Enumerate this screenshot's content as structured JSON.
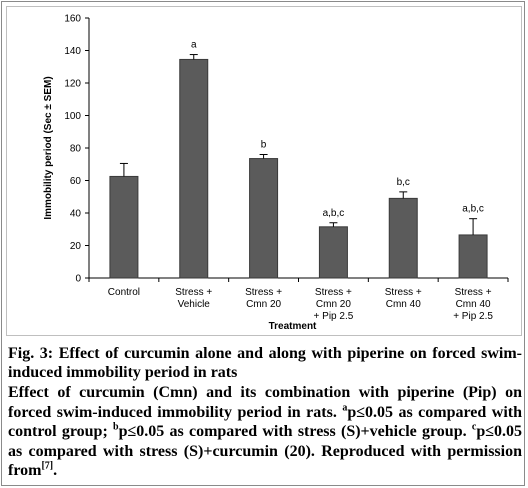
{
  "chart_data": {
    "type": "bar",
    "categories": [
      [
        "Control"
      ],
      [
        "Stress +",
        "Vehicle"
      ],
      [
        "Stress +",
        "Cmn 20"
      ],
      [
        "Stress +",
        "Cmn 20",
        "+ Pip 2.5"
      ],
      [
        "Stress +",
        "Cmn 40"
      ],
      [
        "Stress +",
        "Cmn 40",
        "+ Pip 2.5"
      ]
    ],
    "values": [
      62.5,
      134.5,
      73.5,
      31.5,
      49.0,
      26.5
    ],
    "errors": [
      8.0,
      3.0,
      2.5,
      2.5,
      4.0,
      10.0
    ],
    "significance": [
      "",
      "a",
      "b",
      "a,b,c",
      "b,c",
      "a,b,c"
    ],
    "ylabel": "Immobility period (Sec ± SEM)",
    "xlabel": "Treatment",
    "ylim": [
      0,
      160
    ],
    "yticks": [
      0,
      20,
      40,
      60,
      80,
      100,
      120,
      140,
      160
    ],
    "bar_color": "#5b5b5b",
    "grid": false
  },
  "caption": {
    "title": "Fig. 3: Effect of curcumin alone and along with piperine on forced swim-induced immobility period in rats",
    "desc_parts": [
      {
        "text": "Effect of curcumin (Cmn) and its combination with piperine (Pip) on forced swim-induced immobility period in rats. "
      },
      {
        "sup": "a"
      },
      {
        "text": "p≤0.05 as compared with control group; "
      },
      {
        "sup": "b"
      },
      {
        "text": "p≤0.05 as compared with stress (S)+vehicle group. "
      },
      {
        "sup": "c"
      },
      {
        "text": "p≤0.05 as compared with stress (S)+curcumin (20). Reproduced with permission from"
      },
      {
        "sup": "[7]"
      },
      {
        "text": "."
      }
    ]
  }
}
